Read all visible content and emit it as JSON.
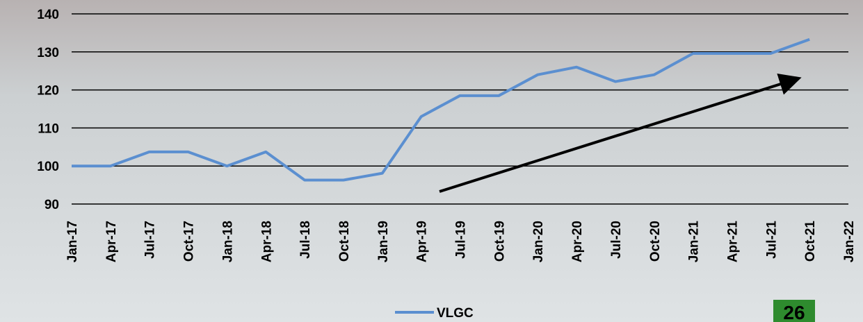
{
  "chart_data": {
    "type": "line",
    "categories": [
      "Jan-17",
      "Apr-17",
      "Jul-17",
      "Oct-17",
      "Jan-18",
      "Apr-18",
      "Jul-18",
      "Oct-18",
      "Jan-19",
      "Apr-19",
      "Jul-19",
      "Oct-19",
      "Jan-20",
      "Apr-20",
      "Jul-20",
      "Oct-20",
      "Jan-21",
      "Apr-21",
      "Jul-21",
      "Oct-21",
      "Jan-22"
    ],
    "series": [
      {
        "name": "VLGC",
        "color": "#5b8fd0",
        "values": [
          100,
          100,
          103.7,
          103.7,
          100,
          103.7,
          96.3,
          96.3,
          98.1,
          113,
          118.5,
          118.5,
          124,
          126,
          122.2,
          124,
          129.6,
          129.6,
          129.6,
          133.3,
          null
        ]
      }
    ],
    "ylim": [
      90,
      140
    ],
    "yticks": [
      90,
      100,
      110,
      120,
      130,
      140
    ],
    "grid": true,
    "legend": "bottom"
  },
  "page_number": "26"
}
